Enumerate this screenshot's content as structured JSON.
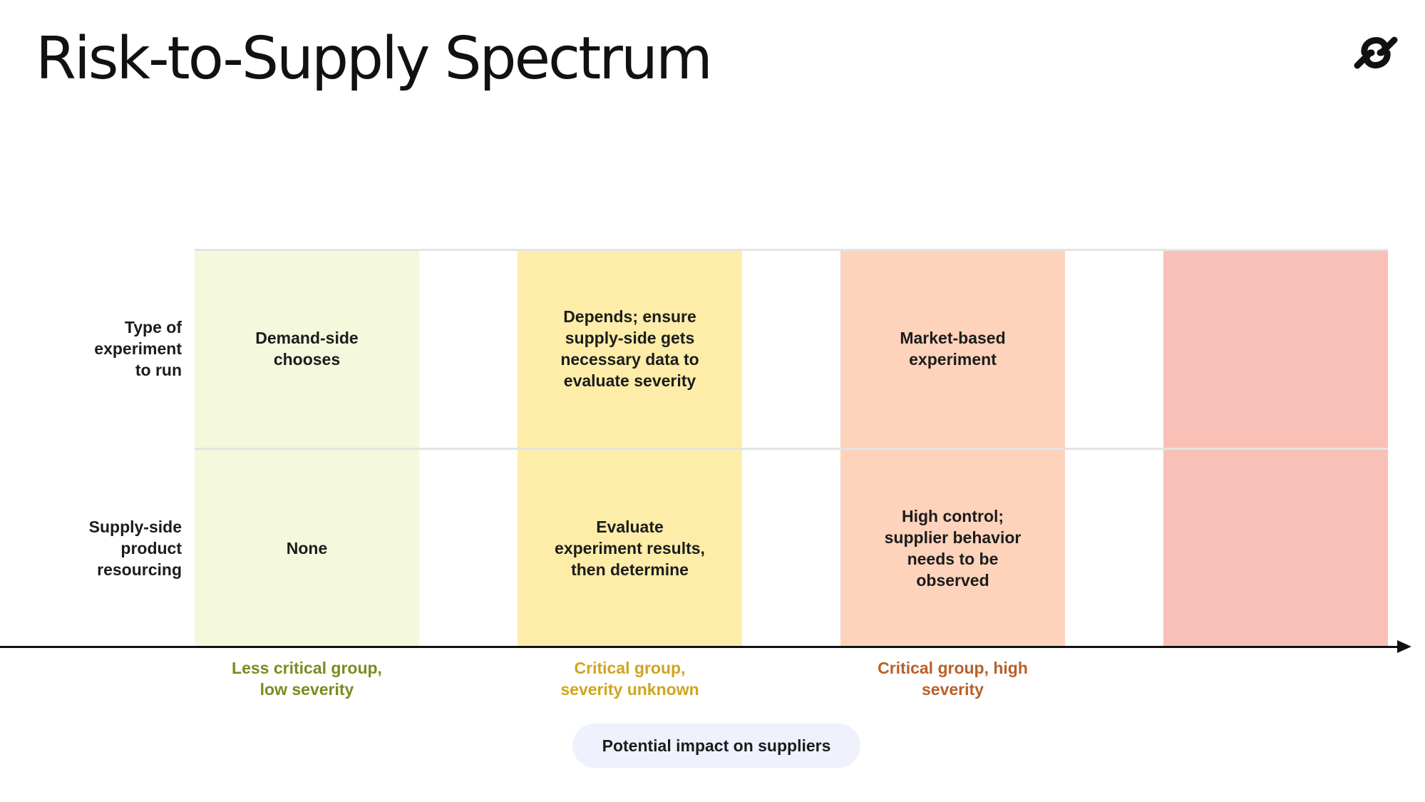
{
  "slide": {
    "title": "Risk-to-Supply Spectrum",
    "logo_icon": "brand-logo-icon"
  },
  "bands": [
    {
      "color": "#f4f8dc"
    },
    {
      "color": "#fdeda8"
    },
    {
      "color": "#fdd3bb"
    },
    {
      "color": "#f8c0b6"
    }
  ],
  "rows": [
    {
      "label": "Type of experiment to run",
      "cells": [
        "Demand-side chooses",
        "Depends; ensure supply-side gets necessary data to evaluate severity",
        "Market-based experiment",
        ""
      ]
    },
    {
      "label": "Supply-side product resourcing",
      "cells": [
        "None",
        "Evaluate experiment results, then determine",
        "High control; supplier behavior needs to be observed",
        ""
      ]
    }
  ],
  "axis": {
    "labels": [
      {
        "text": "Less critical group, low severity",
        "color": "#7e8a1f"
      },
      {
        "text": "Critical group, severity unknown",
        "color": "#cfa51f"
      },
      {
        "text": "Critical group, high severity",
        "color": "#b8602a"
      }
    ],
    "caption": "Potential impact on suppliers"
  }
}
